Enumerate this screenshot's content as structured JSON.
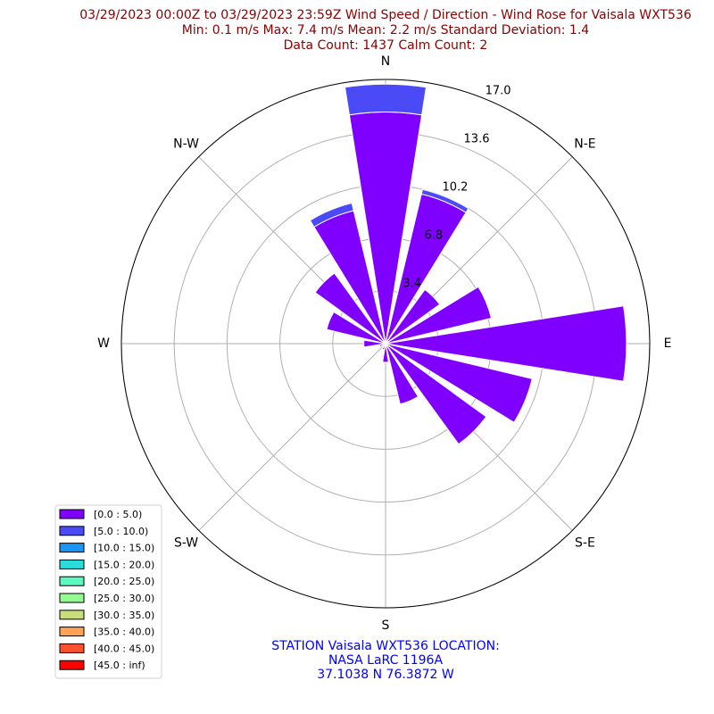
{
  "chart_data": {
    "type": "windrose",
    "title_lines": [
      "03/29/2023 00:00Z to 03/29/2023 23:59Z Wind Speed / Direction - Wind Rose for Vaisala WXT536",
      "Min: 0.1 m/s   Max: 7.4 m/s   Mean: 2.2 m/s  Standard Deviation: 1.4",
      "Data Count: 1437  Calm Count:  2"
    ],
    "station_lines": [
      "STATION Vaisala WXT536 LOCATION:",
      "NASA LaRC 1196A",
      "37.1038 N 76.3872 W"
    ],
    "categories": [
      "N",
      null,
      "N-E",
      null,
      "E",
      null,
      "S-E",
      null,
      "S",
      null,
      "S-W",
      null,
      "W",
      null,
      "N-W",
      null
    ],
    "ylim": [
      0,
      17
    ],
    "yticks": [
      3.4,
      6.8,
      10.2,
      13.6,
      {
        "value": 17,
        "label": "17.0"
      }
    ],
    "grid": true,
    "legend": "lower left",
    "series": [
      {
        "name": "[0.0 : 5.0)",
        "color": "#8000ff",
        "values": [
          14.9,
          9.9,
          4.3,
          7.0,
          15.5,
          9.7,
          8.0,
          4.0,
          1.2,
          0.4,
          0.3,
          0.4,
          1.4,
          3.9,
          5.6,
          8.8
        ]
      },
      {
        "name": "[5.0 : 10.0)",
        "color": "#4a4af7",
        "values": [
          1.8,
          0.3,
          0,
          0,
          0,
          0,
          0,
          0,
          0,
          0,
          0,
          0,
          0,
          0,
          0,
          0.5
        ]
      },
      {
        "name": "[10.0 : 15.0)",
        "color": "#1996f3",
        "values": [
          0,
          0,
          0,
          0,
          0,
          0,
          0,
          0,
          0,
          0,
          0,
          0,
          0,
          0,
          0,
          0
        ]
      },
      {
        "name": "[15.0 : 20.0)",
        "color": "#2adddd",
        "values": [
          0,
          0,
          0,
          0,
          0,
          0,
          0,
          0,
          0,
          0,
          0,
          0,
          0,
          0,
          0,
          0
        ]
      },
      {
        "name": "[20.0 : 25.0)",
        "color": "#5cf8be",
        "values": [
          0,
          0,
          0,
          0,
          0,
          0,
          0,
          0,
          0,
          0,
          0,
          0,
          0,
          0,
          0,
          0
        ]
      },
      {
        "name": "[25.0 : 30.0)",
        "color": "#94fa92",
        "values": [
          0,
          0,
          0,
          0,
          0,
          0,
          0,
          0,
          0,
          0,
          0,
          0,
          0,
          0,
          0,
          0
        ]
      },
      {
        "name": "[30.0 : 35.0)",
        "color": "#c8dd7c",
        "values": [
          0,
          0,
          0,
          0,
          0,
          0,
          0,
          0,
          0,
          0,
          0,
          0,
          0,
          0,
          0,
          0
        ]
      },
      {
        "name": "[35.0 : 40.0)",
        "color": "#ffa256",
        "values": [
          0,
          0,
          0,
          0,
          0,
          0,
          0,
          0,
          0,
          0,
          0,
          0,
          0,
          0,
          0,
          0
        ]
      },
      {
        "name": "[40.0 : 45.0)",
        "color": "#ff5030",
        "values": [
          0,
          0,
          0,
          0,
          0,
          0,
          0,
          0,
          0,
          0,
          0,
          0,
          0,
          0,
          0,
          0
        ]
      },
      {
        "name": "[45.0 : inf)",
        "color": "#ff0000",
        "values": [
          0,
          0,
          0,
          0,
          0,
          0,
          0,
          0,
          0,
          0,
          0,
          0,
          0,
          0,
          0,
          0
        ]
      }
    ]
  }
}
